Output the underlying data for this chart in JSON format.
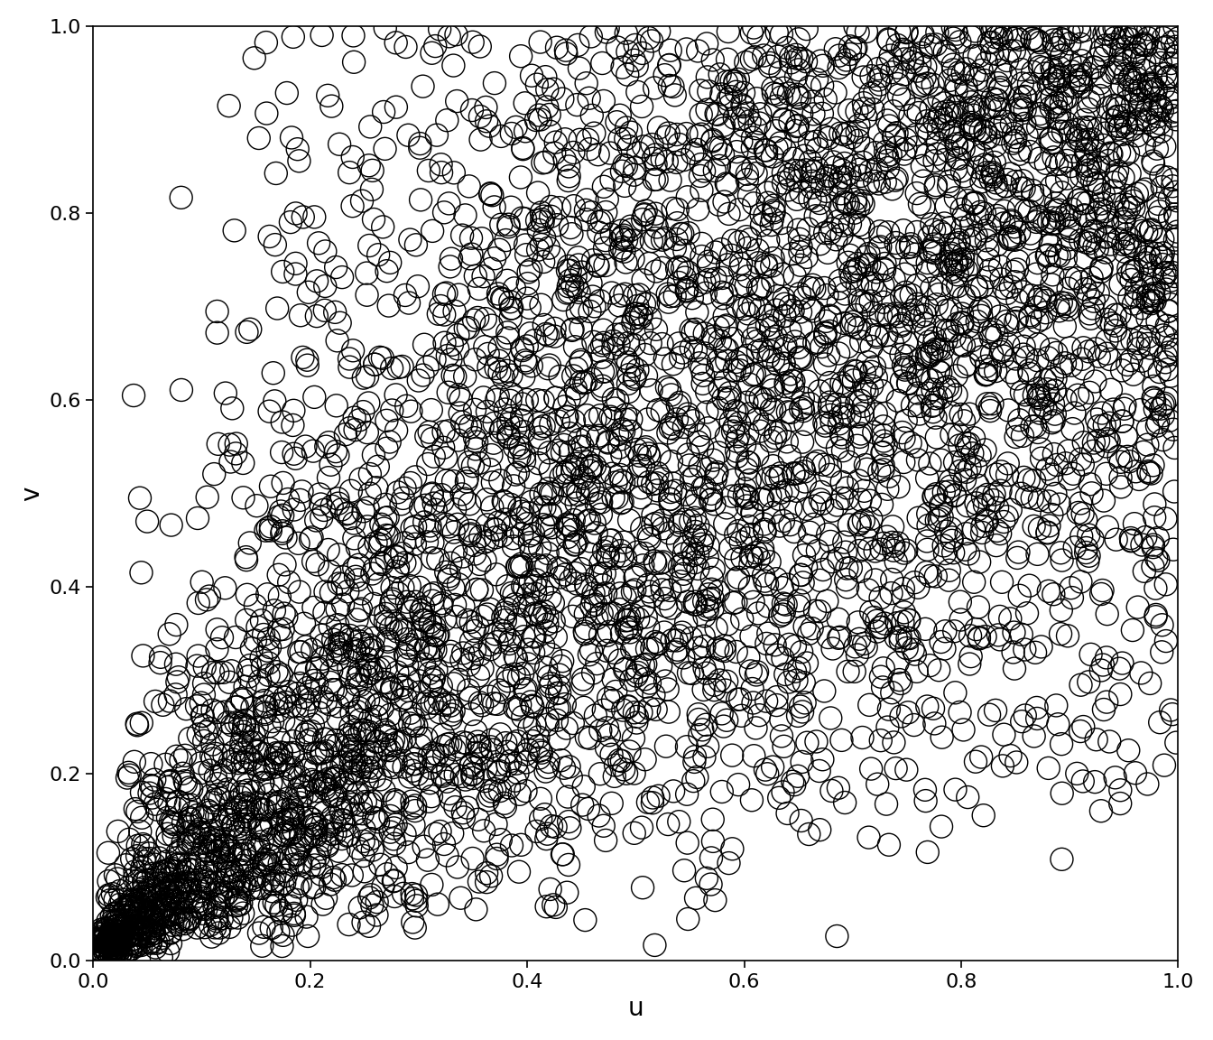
{
  "title": "",
  "xlabel": "u",
  "ylabel": "v",
  "xlim": [
    0.0,
    1.0
  ],
  "ylim": [
    0.0,
    1.0
  ],
  "xticks": [
    0.0,
    0.2,
    0.4,
    0.6,
    0.8,
    1.0
  ],
  "yticks": [
    0.0,
    0.2,
    0.4,
    0.6,
    0.8,
    1.0
  ],
  "n_samples": 5000,
  "clayton_theta": 2.0,
  "random_seed": 1234,
  "marker": "o",
  "marker_size": 18,
  "marker_facecolor": "none",
  "marker_edgecolor": "black",
  "marker_linewidth": 1.0,
  "background_color": "white",
  "xlabel_fontsize": 20,
  "ylabel_fontsize": 20,
  "tick_fontsize": 16,
  "figsize": [
    13.44,
    11.52
  ],
  "dpi": 100
}
